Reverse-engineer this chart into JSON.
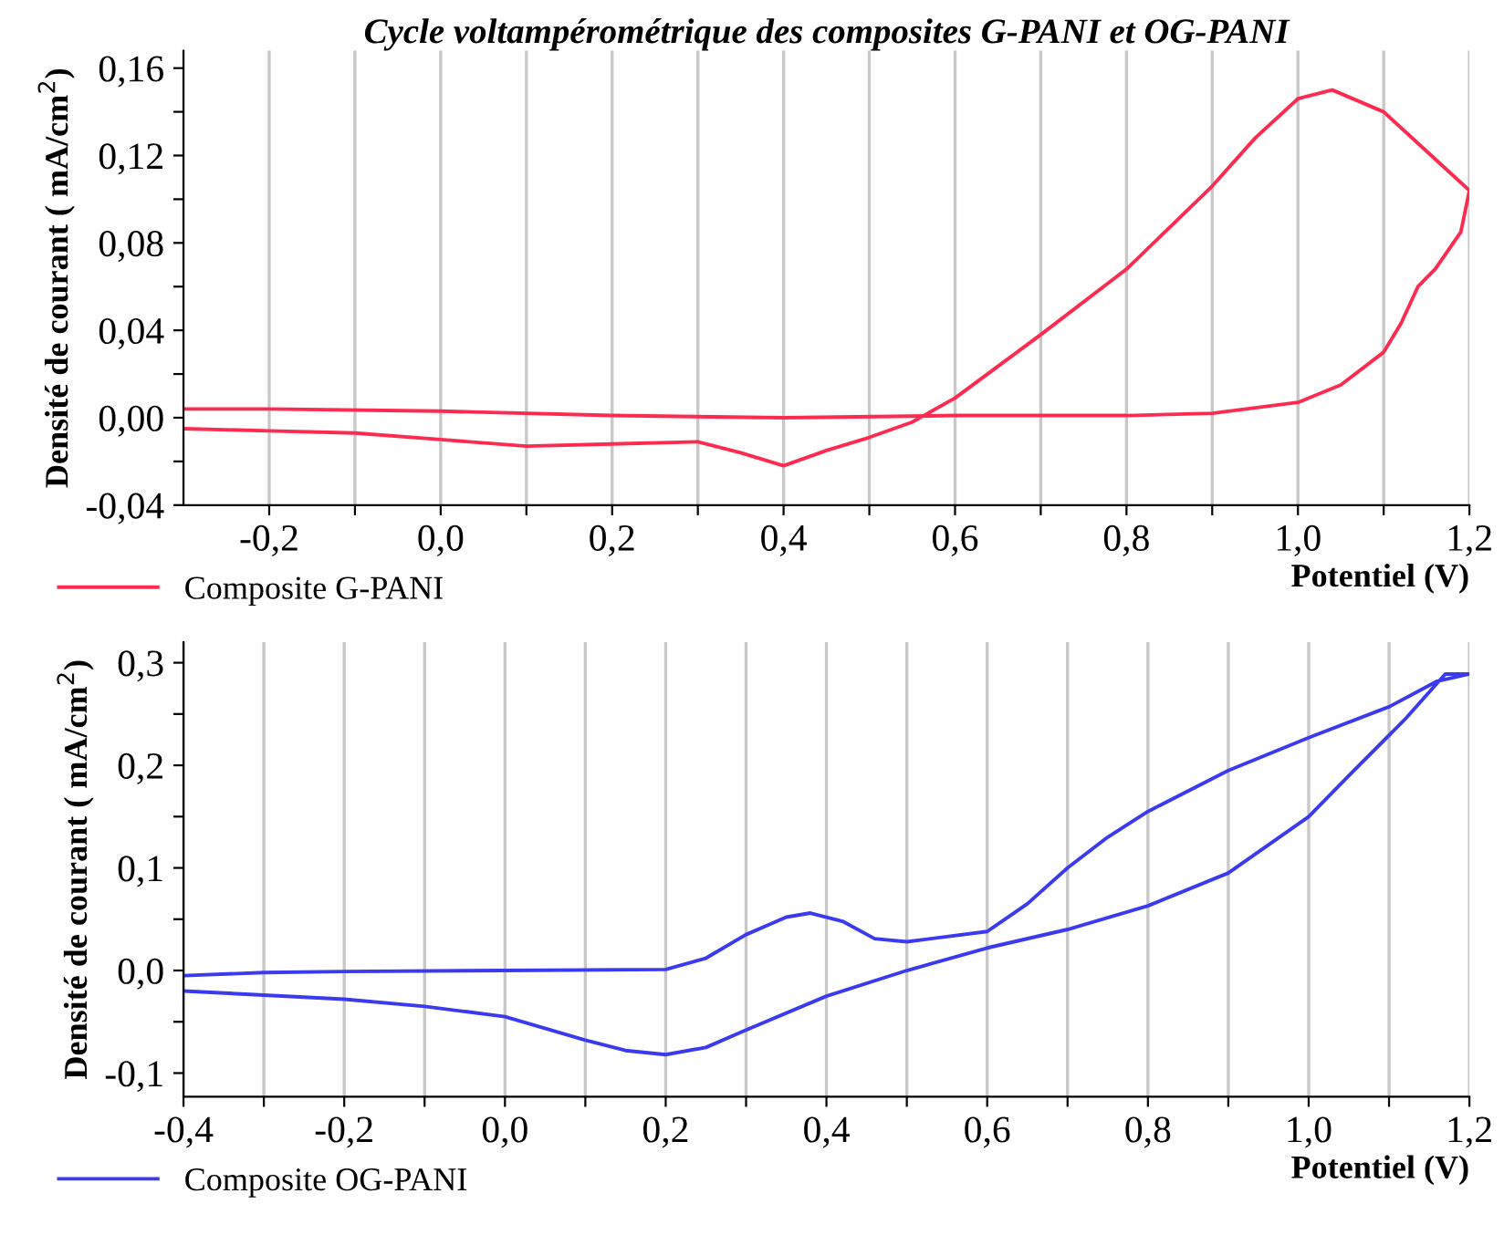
{
  "chart_data": [
    {
      "type": "line",
      "title": "Cycle voltampérométrique des composites G-PANI et OG-PANI",
      "xlabel": "Potentiel (V)",
      "ylabel": "Densité de courant ( mA/cm$^{2}$)",
      "xlim": [
        -0.3,
        1.2
      ],
      "ylim": [
        -0.04,
        0.168
      ],
      "xticks": [
        {
          "value": -0.2,
          "label": "-0,2"
        },
        {
          "value": -0.1,
          "label": null
        },
        {
          "value": 0.0,
          "label": "0,0"
        },
        {
          "value": 0.1,
          "label": null
        },
        {
          "value": 0.2,
          "label": "0,2"
        },
        {
          "value": 0.3,
          "label": null
        },
        {
          "value": 0.4,
          "label": "0,4"
        },
        {
          "value": 0.5,
          "label": null
        },
        {
          "value": 0.6,
          "label": "0,6"
        },
        {
          "value": 0.7,
          "label": null
        },
        {
          "value": 0.8,
          "label": "0,8"
        },
        {
          "value": 0.9,
          "label": null
        },
        {
          "value": 1.0,
          "label": "1,0"
        },
        {
          "value": 1.1,
          "label": null
        },
        {
          "value": 1.2,
          "label": "1,2"
        }
      ],
      "yticks": [
        {
          "value": -0.04,
          "label": "-0,04"
        },
        {
          "value": -0.02,
          "label": null
        },
        {
          "value": 0.0,
          "label": "0,00"
        },
        {
          "value": 0.02,
          "label": null
        },
        {
          "value": 0.04,
          "label": "0,04"
        },
        {
          "value": 0.06,
          "label": null
        },
        {
          "value": 0.08,
          "label": "0,08"
        },
        {
          "value": 0.1,
          "label": null
        },
        {
          "value": 0.12,
          "label": "0,12"
        },
        {
          "value": 0.14,
          "label": null
        },
        {
          "value": 0.16,
          "label": "0,16"
        }
      ],
      "grid": "x",
      "legend": "bottom left",
      "series": [
        {
          "name": "Composite G-PANI",
          "color": "#ff2a4f",
          "x": [
            -0.3,
            -0.2,
            -0.1,
            0.0,
            0.1,
            0.2,
            0.3,
            0.35,
            0.4,
            0.45,
            0.5,
            0.55,
            0.6,
            0.7,
            0.8,
            0.9,
            0.95,
            1.0,
            1.04,
            1.1,
            1.15,
            1.2,
            1.19,
            1.16,
            1.14,
            1.12,
            1.1,
            1.05,
            1.0,
            0.9,
            0.8,
            0.6,
            0.4,
            0.2,
            0.0,
            -0.2,
            -0.3
          ],
          "values": [
            -0.005,
            -0.006,
            -0.007,
            -0.01,
            -0.013,
            -0.012,
            -0.011,
            -0.016,
            -0.022,
            -0.015,
            -0.009,
            -0.002,
            0.009,
            0.038,
            0.068,
            0.106,
            0.128,
            0.146,
            0.15,
            0.14,
            0.122,
            0.104,
            0.085,
            0.068,
            0.06,
            0.043,
            0.03,
            0.015,
            0.007,
            0.002,
            0.001,
            0.001,
            0.0,
            0.001,
            0.003,
            0.004,
            0.004
          ]
        }
      ]
    },
    {
      "type": "line",
      "xlabel": "Potentiel (V)",
      "ylabel": "Densité de courant ( mA/cm$^{2}$)",
      "xlim": [
        -0.4,
        1.2
      ],
      "ylim": [
        -0.123,
        0.32
      ],
      "xticks": [
        {
          "value": -0.4,
          "label": "-0,4"
        },
        {
          "value": -0.3,
          "label": null
        },
        {
          "value": -0.2,
          "label": "-0,2"
        },
        {
          "value": -0.1,
          "label": null
        },
        {
          "value": 0.0,
          "label": "0,0"
        },
        {
          "value": 0.1,
          "label": null
        },
        {
          "value": 0.2,
          "label": "0,2"
        },
        {
          "value": 0.3,
          "label": null
        },
        {
          "value": 0.4,
          "label": "0,4"
        },
        {
          "value": 0.5,
          "label": null
        },
        {
          "value": 0.6,
          "label": "0,6"
        },
        {
          "value": 0.7,
          "label": null
        },
        {
          "value": 0.8,
          "label": "0,8"
        },
        {
          "value": 0.9,
          "label": null
        },
        {
          "value": 1.0,
          "label": "1,0"
        },
        {
          "value": 1.1,
          "label": null
        },
        {
          "value": 1.2,
          "label": "1,2"
        }
      ],
      "yticks": [
        {
          "value": -0.1,
          "label": "-0,1"
        },
        {
          "value": -0.05,
          "label": null
        },
        {
          "value": 0.0,
          "label": "0,0"
        },
        {
          "value": 0.05,
          "label": null
        },
        {
          "value": 0.1,
          "label": "0,1"
        },
        {
          "value": 0.15,
          "label": null
        },
        {
          "value": 0.2,
          "label": "0,2"
        },
        {
          "value": 0.25,
          "label": null
        },
        {
          "value": 0.3,
          "label": "0,3"
        }
      ],
      "grid": "x",
      "legend": "bottom left",
      "series": [
        {
          "name": "Composite OG-PANI",
          "color": "#3a3af0",
          "x": [
            -0.4,
            -0.3,
            -0.2,
            0.0,
            0.2,
            0.25,
            0.3,
            0.35,
            0.38,
            0.42,
            0.46,
            0.5,
            0.6,
            0.65,
            0.7,
            0.75,
            0.8,
            0.9,
            1.0,
            1.1,
            1.16,
            1.2,
            1.17,
            1.12,
            1.05,
            1.0,
            0.9,
            0.8,
            0.7,
            0.6,
            0.5,
            0.4,
            0.3,
            0.25,
            0.2,
            0.15,
            0.1,
            0.0,
            -0.1,
            -0.2,
            -0.3,
            -0.4
          ],
          "values": [
            -0.005,
            -0.002,
            -0.001,
            0.0,
            0.001,
            0.012,
            0.035,
            0.052,
            0.056,
            0.048,
            0.031,
            0.028,
            0.038,
            0.065,
            0.1,
            0.13,
            0.155,
            0.195,
            0.227,
            0.257,
            0.282,
            0.289,
            0.289,
            0.245,
            0.19,
            0.15,
            0.095,
            0.063,
            0.04,
            0.022,
            0.0,
            -0.025,
            -0.058,
            -0.075,
            -0.082,
            -0.078,
            -0.068,
            -0.045,
            -0.035,
            -0.028,
            -0.024,
            -0.02
          ]
        }
      ]
    }
  ]
}
